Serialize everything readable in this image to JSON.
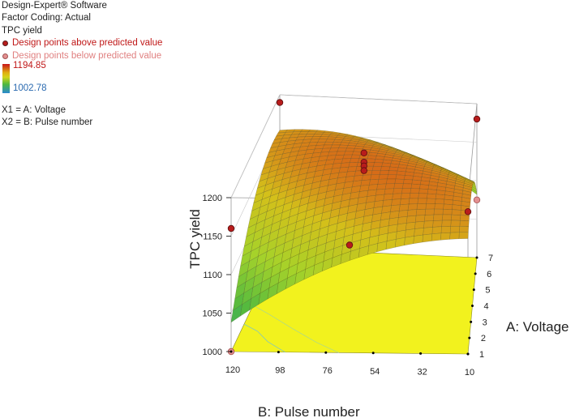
{
  "info": {
    "software": "Design-Expert® Software",
    "factor_coding": "Factor Coding: Actual",
    "response_name": "TPC yield",
    "above_label": "Design points above predicted value",
    "below_label": "Design points below predicted value",
    "color_max": "1194.85",
    "color_min": "1002.78",
    "x1_def": "X1 = A: Voltage",
    "x2_def": "X2 = B: Pulse number"
  },
  "colors": {
    "above": "#b81c1c",
    "below": "#e39090",
    "floor": "#f2f21e",
    "high": "#c8141a",
    "low": "#2a8ad0"
  },
  "chart_data": {
    "type": "surface3d",
    "zlabel": "TPC yield",
    "xlabel": "B: Pulse number",
    "ylabel": "A: Voltage",
    "b_ticks": [
      "120",
      "98",
      "76",
      "54",
      "32",
      "10"
    ],
    "a_ticks": [
      "1",
      "2",
      "3",
      "4",
      "5",
      "6",
      "7"
    ],
    "z_ticks": [
      "1000",
      "1050",
      "1100",
      "1150",
      "1200"
    ],
    "b_range": [
      10,
      120
    ],
    "a_range": [
      1,
      7
    ],
    "z_range": [
      1000,
      1200
    ],
    "surface_range": [
      1002.78,
      1194.85
    ],
    "design_points": [
      {
        "a": 1,
        "b": 120,
        "z": 1160,
        "position": "above"
      },
      {
        "a": 1,
        "b": 120,
        "z": 1000,
        "position": "below"
      },
      {
        "a": 1,
        "b": 10,
        "z": 1185,
        "position": "above"
      },
      {
        "a": 7,
        "b": 120,
        "z": 1190,
        "position": "above"
      },
      {
        "a": 7,
        "b": 10,
        "z": 1180,
        "position": "above"
      },
      {
        "a": 7,
        "b": 10,
        "z": 1075,
        "position": "below"
      },
      {
        "a": 4,
        "b": 65,
        "z": 1195,
        "position": "above"
      },
      {
        "a": 4,
        "b": 65,
        "z": 1183,
        "position": "above"
      },
      {
        "a": 4,
        "b": 65,
        "z": 1178,
        "position": "above"
      },
      {
        "a": 4,
        "b": 65,
        "z": 1172,
        "position": "above"
      },
      {
        "a": 1,
        "b": 65,
        "z": 1140,
        "position": "above"
      }
    ]
  }
}
